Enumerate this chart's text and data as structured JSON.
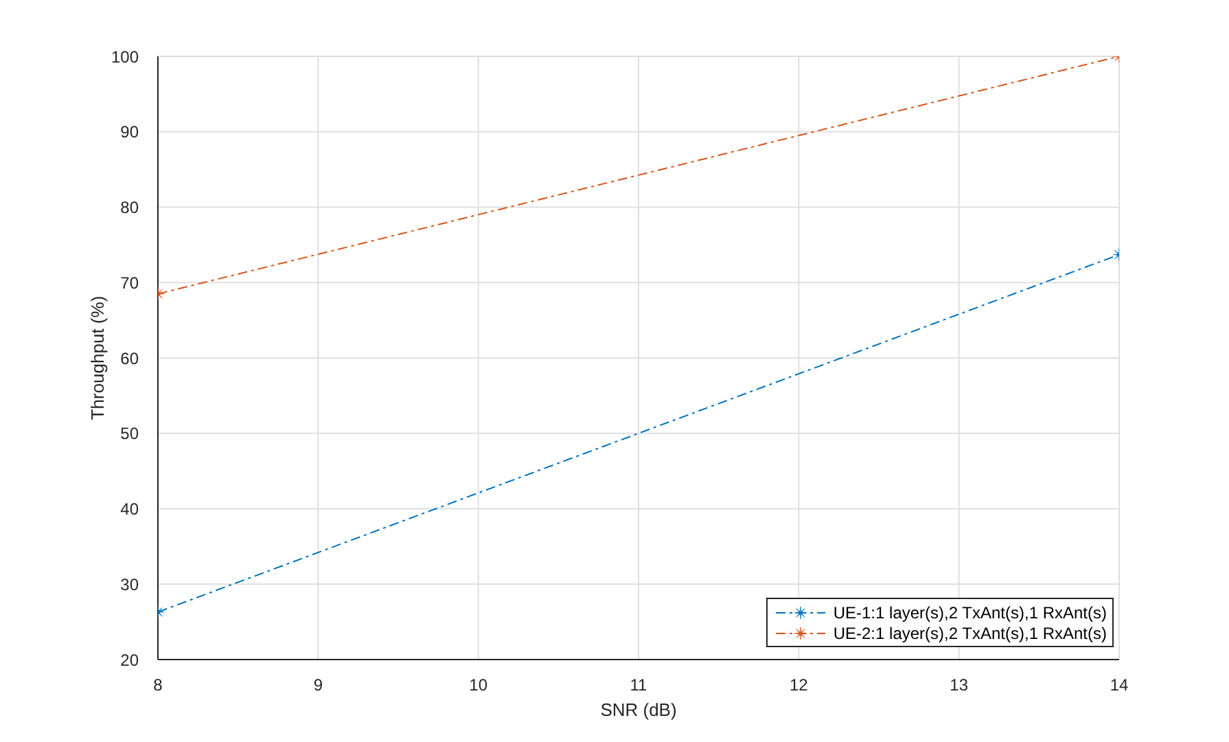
{
  "chart_data": {
    "type": "line",
    "xlabel": "SNR (dB)",
    "ylabel": "Throughput (%)",
    "x": [
      8,
      14
    ],
    "series": [
      {
        "name": "UE-1:1 layer(s),2 TxAnt(s),1 RxAnt(s)",
        "color": "#0072bd",
        "values": [
          26.3,
          73.7
        ]
      },
      {
        "name": "UE-2:1 layer(s),2 TxAnt(s),1 RxAnt(s)",
        "color": "#d95319",
        "values": [
          68.5,
          100
        ]
      }
    ],
    "xlim": [
      8,
      14
    ],
    "xticks": [
      8,
      9,
      10,
      11,
      12,
      13,
      14
    ],
    "ylim": [
      20,
      100
    ],
    "yticks": [
      20,
      30,
      40,
      50,
      60,
      70,
      80,
      90,
      100
    ],
    "grid": true,
    "legend": "bottom right",
    "marker": "star",
    "line_style": "dashed"
  }
}
